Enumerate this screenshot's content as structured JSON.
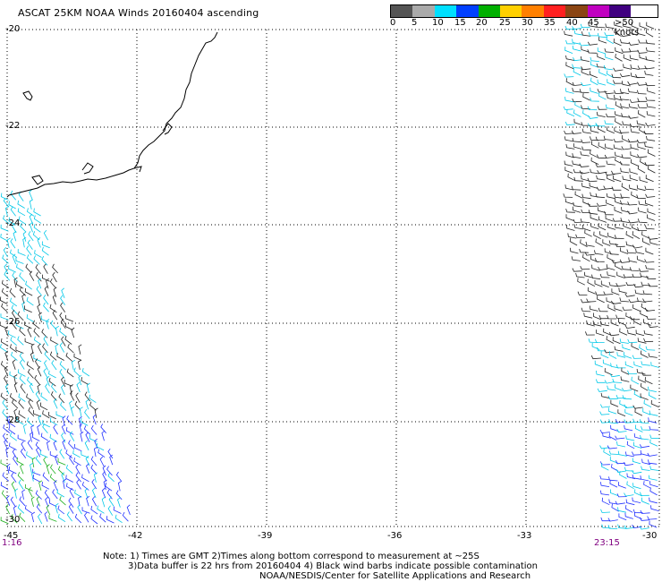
{
  "title": "ASCAT 25KM NOAA Winds 20160404 ascending",
  "legend": {
    "labels": [
      "0",
      "5",
      "10",
      "15",
      "20",
      "25",
      "30",
      "35",
      "40",
      "45",
      ">50 knots"
    ],
    "colors": [
      "#555555",
      "#aaaaaa",
      "#00e0ff",
      "#0040ff",
      "#00b000",
      "#ffd000",
      "#ff8000",
      "#ff2020",
      "#8b4513",
      "#c000c0",
      "#400080"
    ]
  },
  "map": {
    "lat_labels": [
      "-20",
      "-22",
      "-24",
      "-26",
      "-28",
      "-30"
    ],
    "lon_labels": [
      "-45",
      "-42",
      "-39",
      "-36",
      "-33",
      "-30"
    ],
    "time_left": "1:16",
    "time_right": "23:15",
    "coast_color": "#000000",
    "grid": "dotted"
  },
  "notes": {
    "line1": "Note: 1) Times are GMT 2)Times along bottom correspond to measurement at ~25S",
    "line2": "3)Data buffer is 22 hrs from 20160404 4) Black wind barbs indicate possible contamination",
    "line3": "NOAA/NESDIS/Center for Satellite Applications and Research"
  }
}
